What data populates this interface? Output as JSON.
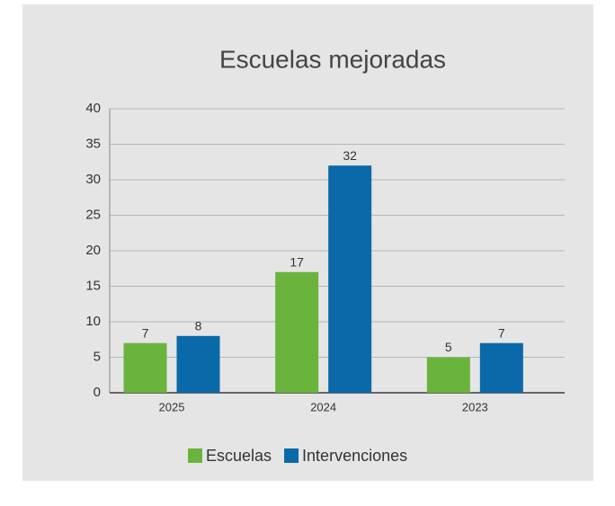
{
  "chart_data": {
    "type": "bar",
    "title": "Escuelas mejoradas",
    "categories": [
      "2025",
      "2024",
      "2023"
    ],
    "series": [
      {
        "name": "Escuelas",
        "color": "#6ab43e",
        "values": [
          7,
          17,
          5
        ]
      },
      {
        "name": "Intervenciones",
        "color": "#0a69a8",
        "values": [
          8,
          32,
          7
        ]
      }
    ],
    "ylim": [
      0,
      40
    ],
    "yticks": [
      0,
      5,
      10,
      15,
      20,
      25,
      30,
      35,
      40
    ],
    "grid": true,
    "legend": "bottom"
  }
}
